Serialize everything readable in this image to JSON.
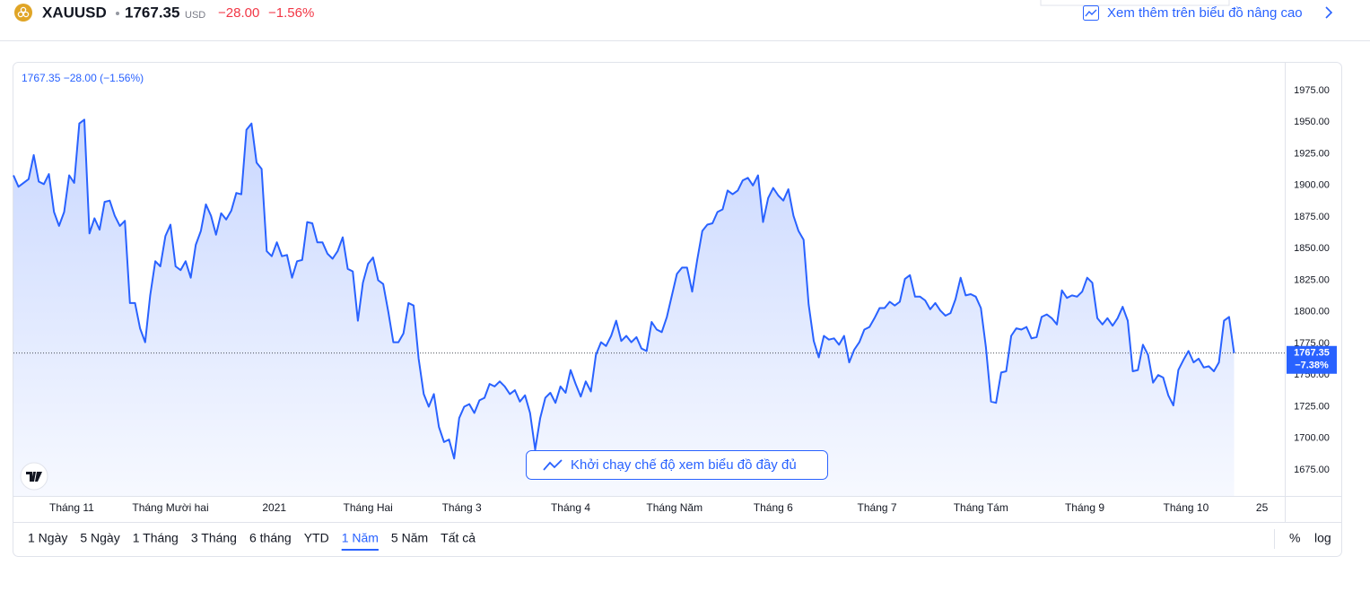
{
  "header": {
    "symbol": "XAUUSD",
    "price": "1767.35",
    "currency": "USD",
    "change": "−28.00",
    "change_pct": "−1.56%",
    "advanced_link": "Xem thêm trên biểu đồ nâng cao"
  },
  "chart_data": {
    "type": "line",
    "legend": "1767.35 −28.00 (−1.56%)",
    "color": "#2962ff",
    "fill_area": true,
    "grid": false,
    "values": [
      1908,
      1899,
      1902,
      1905,
      1924,
      1903,
      1901,
      1909,
      1879,
      1868,
      1879,
      1908,
      1902,
      1949,
      1952,
      1862,
      1874,
      1865,
      1887,
      1888,
      1876,
      1868,
      1872,
      1807,
      1807,
      1787,
      1776,
      1813,
      1840,
      1836,
      1860,
      1869,
      1836,
      1833,
      1840,
      1827,
      1853,
      1864,
      1885,
      1876,
      1861,
      1878,
      1873,
      1880,
      1894,
      1893,
      1944,
      1949,
      1918,
      1913,
      1848,
      1844,
      1855,
      1844,
      1845,
      1827,
      1840,
      1841,
      1871,
      1870,
      1855,
      1855,
      1846,
      1842,
      1848,
      1859,
      1834,
      1832,
      1793,
      1823,
      1838,
      1843,
      1825,
      1822,
      1800,
      1776,
      1776,
      1783,
      1807,
      1805,
      1763,
      1735,
      1725,
      1735,
      1709,
      1697,
      1699,
      1684,
      1716,
      1725,
      1727,
      1720,
      1730,
      1732,
      1743,
      1741,
      1745,
      1741,
      1735,
      1738,
      1729,
      1734,
      1720,
      1691,
      1716,
      1732,
      1736,
      1728,
      1741,
      1736,
      1754,
      1743,
      1733,
      1745,
      1737,
      1766,
      1776,
      1773,
      1781,
      1793,
      1777,
      1781,
      1776,
      1780,
      1771,
      1769,
      1792,
      1786,
      1784,
      1796,
      1813,
      1830,
      1835,
      1835,
      1816,
      1841,
      1864,
      1869,
      1870,
      1879,
      1881,
      1896,
      1893,
      1896,
      1904,
      1906,
      1900,
      1908,
      1871,
      1890,
      1898,
      1892,
      1888,
      1897,
      1876,
      1864,
      1857,
      1806,
      1777,
      1764,
      1781,
      1778,
      1779,
      1774,
      1781,
      1760,
      1770,
      1776,
      1786,
      1788,
      1795,
      1803,
      1803,
      1808,
      1805,
      1808,
      1826,
      1829,
      1812,
      1812,
      1809,
      1802,
      1807,
      1801,
      1797,
      1799,
      1810,
      1827,
      1813,
      1814,
      1812,
      1803,
      1772,
      1729,
      1728,
      1752,
      1753,
      1781,
      1787,
      1786,
      1788,
      1779,
      1780,
      1796,
      1798,
      1795,
      1790,
      1817,
      1811,
      1813,
      1812,
      1816,
      1827,
      1823,
      1795,
      1790,
      1795,
      1789,
      1795,
      1804,
      1793,
      1753,
      1754,
      1774,
      1766,
      1744,
      1750,
      1748,
      1734,
      1726,
      1754,
      1762,
      1769,
      1760,
      1763,
      1756,
      1757,
      1753,
      1760,
      1793,
      1796,
      1767.35
    ],
    "xlim": [
      0,
      251
    ],
    "xticks": [
      {
        "value": 11.5,
        "label": "Tháng 11"
      },
      {
        "value": 31,
        "label": "Tháng Mười hai"
      },
      {
        "value": 51.5,
        "label": "2021"
      },
      {
        "value": 70,
        "label": "Tháng Hai"
      },
      {
        "value": 88.5,
        "label": "Tháng 3"
      },
      {
        "value": 110,
        "label": "Tháng 4"
      },
      {
        "value": 130.5,
        "label": "Tháng Năm"
      },
      {
        "value": 150,
        "label": "Tháng 6"
      },
      {
        "value": 170.5,
        "label": "Tháng 7"
      },
      {
        "value": 191,
        "label": "Tháng Tám"
      },
      {
        "value": 211.5,
        "label": "Tháng 9"
      },
      {
        "value": 231.5,
        "label": "Tháng 10"
      },
      {
        "value": 246.5,
        "label": "25"
      }
    ],
    "ylim": [
      1654.4,
      1997
    ],
    "yticks": [
      {
        "value": 1675,
        "label": "1675.00"
      },
      {
        "value": 1700,
        "label": "1700.00"
      },
      {
        "value": 1725,
        "label": "1725.00"
      },
      {
        "value": 1750,
        "label": "1750.00"
      },
      {
        "value": 1775,
        "label": "1775.00"
      },
      {
        "value": 1800,
        "label": "1800.00"
      },
      {
        "value": 1825,
        "label": "1825.00"
      },
      {
        "value": 1850,
        "label": "1850.00"
      },
      {
        "value": 1875,
        "label": "1875.00"
      },
      {
        "value": 1900,
        "label": "1900.00"
      },
      {
        "value": 1925,
        "label": "1925.00"
      },
      {
        "value": 1950,
        "label": "1950.00"
      },
      {
        "value": 1975,
        "label": "1975.00"
      }
    ],
    "price_label": "1767.35",
    "change_label": "−7.38%"
  },
  "controls": {
    "fullscreen_button": "Khởi chạy chế độ xem biểu đồ đầy đủ",
    "ranges": [
      "1 Ngày",
      "5 Ngày",
      "1 Tháng",
      "3 Tháng",
      "6 tháng",
      "YTD",
      "1 Năm",
      "5 Năm",
      "Tất cả"
    ],
    "active_range": 6,
    "scale_options": [
      "%",
      "log"
    ]
  }
}
